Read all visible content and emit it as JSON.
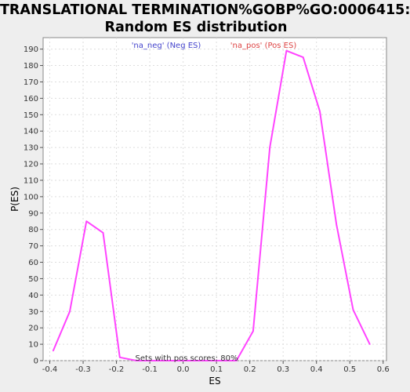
{
  "chart_data": {
    "type": "line",
    "title_lines": [
      "TRANSLATIONAL TERMINATION%GOBP%GO:0006415:",
      "Random ES distribution"
    ],
    "xlabel": "ES",
    "ylabel": "P(ES)",
    "xlim": [
      -0.42,
      0.61
    ],
    "ylim": [
      0,
      197
    ],
    "x_ticks": [
      -0.4,
      -0.3,
      -0.2,
      -0.1,
      0.0,
      0.1,
      0.2,
      0.3,
      0.4,
      0.5,
      0.6
    ],
    "x_tick_labels": [
      "-0.4",
      "-0.3",
      "-0.2",
      "-0.1",
      "0.0",
      "0.1",
      "0.2",
      "0.3",
      "0.4",
      "0.5",
      "0.6"
    ],
    "y_ticks": [
      0,
      10,
      20,
      30,
      40,
      50,
      60,
      70,
      80,
      90,
      100,
      110,
      120,
      130,
      140,
      150,
      160,
      170,
      180,
      190
    ],
    "y_tick_labels": [
      "0",
      "10",
      "20",
      "30",
      "40",
      "50",
      "60",
      "70",
      "80",
      "90",
      "100",
      "110",
      "120",
      "130",
      "140",
      "150",
      "160",
      "170",
      "180",
      "190"
    ],
    "grid": true,
    "series": [
      {
        "color": "#ff44ff",
        "x": [
          -0.39,
          -0.34,
          -0.29,
          -0.24,
          -0.19,
          -0.14,
          0.16,
          0.21,
          0.26,
          0.31,
          0.36,
          0.41,
          0.46,
          0.51,
          0.56
        ],
        "y": [
          6,
          30,
          85,
          78,
          2,
          0,
          0,
          18,
          130,
          189,
          185,
          152,
          83,
          31,
          10
        ]
      }
    ],
    "legend": [
      {
        "label": "'na_neg' (Neg ES)",
        "color": "#4444cc"
      },
      {
        "label": "'na_pos' (Pos ES)",
        "color": "#dd4444"
      }
    ],
    "legend_placement": "top",
    "annotation": "Sets with pos scores: 80%"
  }
}
